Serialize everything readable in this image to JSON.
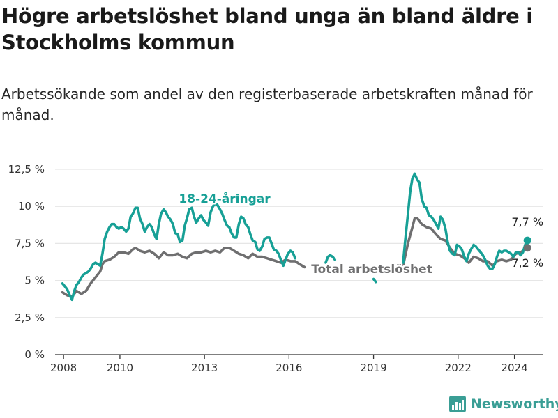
{
  "header": {
    "title": "Högre arbetslöshet bland unga än bland äldre i Stockholms kommun",
    "subtitle": "Arbetssökande som andel av den registerbaserade arbetskraften månad för månad."
  },
  "branding": {
    "logo_text": "Newsworthy",
    "logo_icon": "bar-chart-icon"
  },
  "colors": {
    "young": "#17a096",
    "total": "#6f6f70",
    "grid": "#e6e6e6",
    "axis": "#333333",
    "brand": "#3a9e95"
  },
  "chart_data": {
    "type": "line",
    "title": "Högre arbetslöshet bland unga än bland äldre i Stockholms kommun",
    "xlabel": "",
    "ylabel": "",
    "xlim": [
      2007.7,
      2025.0
    ],
    "ylim": [
      0,
      12.5
    ],
    "x_ticks": [
      {
        "value": 2008,
        "label": "2008"
      },
      {
        "value": 2010,
        "label": "2010"
      },
      {
        "value": 2013,
        "label": "2013"
      },
      {
        "value": 2016,
        "label": "2016"
      },
      {
        "value": 2019,
        "label": "2019"
      },
      {
        "value": 2022,
        "label": "2022"
      },
      {
        "value": 2024,
        "label": "2024"
      }
    ],
    "y_ticks": [
      {
        "value": 0,
        "label": "0 %"
      },
      {
        "value": 2.5,
        "label": "2,5 %"
      },
      {
        "value": 5,
        "label": "5 %"
      },
      {
        "value": 7.5,
        "label": "7,5 %"
      },
      {
        "value": 10,
        "label": "10 %"
      },
      {
        "value": 12.5,
        "label": "12,5 %"
      }
    ],
    "series": [
      {
        "name": "18-24-åringar",
        "label": "18-24-åringar",
        "color_key": "young",
        "end_label": "7,7 %",
        "segments": [
          [
            [
              2007.96,
              4.8
            ],
            [
              2008.05,
              4.6
            ],
            [
              2008.13,
              4.4
            ],
            [
              2008.22,
              4.0
            ],
            [
              2008.3,
              3.7
            ],
            [
              2008.38,
              4.3
            ],
            [
              2008.46,
              4.7
            ],
            [
              2008.55,
              4.9
            ],
            [
              2008.63,
              5.2
            ],
            [
              2008.71,
              5.4
            ],
            [
              2008.8,
              5.5
            ],
            [
              2008.88,
              5.6
            ],
            [
              2008.96,
              5.8
            ],
            [
              2009.05,
              6.1
            ],
            [
              2009.13,
              6.2
            ],
            [
              2009.22,
              6.1
            ],
            [
              2009.3,
              6.0
            ],
            [
              2009.38,
              6.8
            ],
            [
              2009.46,
              7.8
            ],
            [
              2009.55,
              8.3
            ],
            [
              2009.63,
              8.6
            ],
            [
              2009.71,
              8.8
            ],
            [
              2009.8,
              8.8
            ],
            [
              2009.88,
              8.6
            ],
            [
              2009.96,
              8.5
            ],
            [
              2010.05,
              8.6
            ],
            [
              2010.13,
              8.5
            ],
            [
              2010.22,
              8.3
            ],
            [
              2010.3,
              8.5
            ],
            [
              2010.38,
              9.3
            ],
            [
              2010.46,
              9.5
            ],
            [
              2010.55,
              9.9
            ],
            [
              2010.63,
              9.9
            ],
            [
              2010.71,
              9.2
            ],
            [
              2010.8,
              8.8
            ],
            [
              2010.88,
              8.3
            ],
            [
              2010.96,
              8.6
            ],
            [
              2011.05,
              8.8
            ],
            [
              2011.13,
              8.6
            ],
            [
              2011.22,
              8.1
            ],
            [
              2011.3,
              7.8
            ],
            [
              2011.38,
              8.8
            ],
            [
              2011.46,
              9.5
            ],
            [
              2011.55,
              9.8
            ],
            [
              2011.63,
              9.6
            ],
            [
              2011.71,
              9.3
            ],
            [
              2011.8,
              9.1
            ],
            [
              2011.88,
              8.8
            ],
            [
              2011.96,
              8.2
            ],
            [
              2012.05,
              8.1
            ],
            [
              2012.13,
              7.6
            ],
            [
              2012.22,
              7.7
            ],
            [
              2012.3,
              8.7
            ],
            [
              2012.38,
              9.2
            ],
            [
              2012.46,
              9.8
            ],
            [
              2012.55,
              9.9
            ],
            [
              2012.63,
              9.3
            ],
            [
              2012.71,
              8.9
            ],
            [
              2012.8,
              9.2
            ],
            [
              2012.88,
              9.4
            ],
            [
              2012.96,
              9.1
            ],
            [
              2013.05,
              8.9
            ],
            [
              2013.13,
              8.7
            ],
            [
              2013.22,
              9.6
            ],
            [
              2013.3,
              10.0
            ],
            [
              2013.38,
              10.2
            ],
            [
              2013.46,
              10.1
            ],
            [
              2013.55,
              9.8
            ],
            [
              2013.63,
              9.5
            ],
            [
              2013.71,
              9.1
            ],
            [
              2013.8,
              8.7
            ],
            [
              2013.88,
              8.6
            ],
            [
              2013.96,
              8.2
            ],
            [
              2014.05,
              7.9
            ],
            [
              2014.13,
              7.9
            ],
            [
              2014.22,
              8.8
            ],
            [
              2014.3,
              9.3
            ],
            [
              2014.38,
              9.2
            ],
            [
              2014.46,
              8.8
            ],
            [
              2014.55,
              8.6
            ],
            [
              2014.63,
              8.1
            ],
            [
              2014.71,
              7.7
            ],
            [
              2014.8,
              7.6
            ],
            [
              2014.88,
              7.1
            ],
            [
              2014.96,
              7.0
            ],
            [
              2015.05,
              7.3
            ],
            [
              2015.13,
              7.8
            ],
            [
              2015.22,
              7.9
            ],
            [
              2015.3,
              7.9
            ],
            [
              2015.38,
              7.5
            ],
            [
              2015.46,
              7.1
            ],
            [
              2015.55,
              7.0
            ],
            [
              2015.63,
              6.8
            ],
            [
              2015.71,
              6.4
            ],
            [
              2015.8,
              6.0
            ],
            [
              2015.88,
              6.4
            ],
            [
              2015.96,
              6.8
            ],
            [
              2016.05,
              7.0
            ],
            [
              2016.13,
              6.9
            ],
            [
              2016.22,
              6.5
            ]
          ],
          [
            [
              2017.3,
              6.2
            ],
            [
              2017.38,
              6.6
            ],
            [
              2017.46,
              6.7
            ],
            [
              2017.55,
              6.6
            ],
            [
              2017.63,
              6.4
            ]
          ],
          [
            [
              2019.0,
              5.1
            ],
            [
              2019.08,
              4.9
            ]
          ],
          [
            [
              2020.05,
              6.2
            ],
            [
              2020.13,
              7.8
            ],
            [
              2020.22,
              9.5
            ],
            [
              2020.3,
              11.0
            ],
            [
              2020.38,
              11.9
            ],
            [
              2020.46,
              12.2
            ],
            [
              2020.55,
              11.8
            ],
            [
              2020.63,
              11.6
            ],
            [
              2020.71,
              10.5
            ],
            [
              2020.8,
              10.0
            ],
            [
              2020.88,
              9.9
            ],
            [
              2020.96,
              9.4
            ],
            [
              2021.05,
              9.3
            ],
            [
              2021.13,
              9.1
            ],
            [
              2021.22,
              8.8
            ],
            [
              2021.3,
              8.5
            ],
            [
              2021.38,
              9.3
            ],
            [
              2021.46,
              9.1
            ],
            [
              2021.55,
              8.5
            ],
            [
              2021.63,
              7.6
            ],
            [
              2021.71,
              7.0
            ],
            [
              2021.8,
              6.8
            ],
            [
              2021.88,
              6.7
            ],
            [
              2021.96,
              7.4
            ],
            [
              2022.05,
              7.3
            ],
            [
              2022.13,
              7.1
            ],
            [
              2022.22,
              6.6
            ],
            [
              2022.3,
              6.3
            ],
            [
              2022.38,
              6.8
            ],
            [
              2022.46,
              7.1
            ],
            [
              2022.55,
              7.4
            ],
            [
              2022.63,
              7.3
            ],
            [
              2022.71,
              7.1
            ],
            [
              2022.8,
              6.9
            ],
            [
              2022.88,
              6.7
            ],
            [
              2022.96,
              6.4
            ],
            [
              2023.05,
              6.0
            ],
            [
              2023.13,
              5.8
            ],
            [
              2023.22,
              5.8
            ],
            [
              2023.3,
              6.1
            ],
            [
              2023.38,
              6.6
            ],
            [
              2023.46,
              7.0
            ],
            [
              2023.55,
              6.9
            ],
            [
              2023.63,
              7.0
            ],
            [
              2023.71,
              7.0
            ],
            [
              2023.8,
              6.9
            ],
            [
              2023.88,
              6.8
            ],
            [
              2023.96,
              6.6
            ],
            [
              2024.05,
              6.9
            ],
            [
              2024.13,
              6.9
            ],
            [
              2024.22,
              6.7
            ],
            [
              2024.3,
              6.9
            ],
            [
              2024.38,
              7.4
            ],
            [
              2024.46,
              7.7
            ]
          ]
        ]
      },
      {
        "name": "Total arbetslöshet",
        "label": "Total arbetslöshet",
        "color_key": "total",
        "end_label": "7,2 %",
        "segments": [
          [
            [
              2007.96,
              4.2
            ],
            [
              2008.13,
              4.0
            ],
            [
              2008.3,
              3.9
            ],
            [
              2008.46,
              4.3
            ],
            [
              2008.63,
              4.1
            ],
            [
              2008.8,
              4.3
            ],
            [
              2008.96,
              4.8
            ],
            [
              2009.13,
              5.2
            ],
            [
              2009.3,
              5.6
            ],
            [
              2009.38,
              6.1
            ],
            [
              2009.46,
              6.3
            ],
            [
              2009.63,
              6.4
            ],
            [
              2009.8,
              6.6
            ],
            [
              2009.96,
              6.9
            ],
            [
              2010.13,
              6.9
            ],
            [
              2010.3,
              6.8
            ],
            [
              2010.46,
              7.1
            ],
            [
              2010.55,
              7.2
            ],
            [
              2010.71,
              7.0
            ],
            [
              2010.88,
              6.9
            ],
            [
              2011.05,
              7.0
            ],
            [
              2011.22,
              6.8
            ],
            [
              2011.38,
              6.5
            ],
            [
              2011.55,
              6.9
            ],
            [
              2011.71,
              6.7
            ],
            [
              2011.88,
              6.7
            ],
            [
              2012.05,
              6.8
            ],
            [
              2012.22,
              6.6
            ],
            [
              2012.38,
              6.5
            ],
            [
              2012.55,
              6.8
            ],
            [
              2012.71,
              6.9
            ],
            [
              2012.88,
              6.9
            ],
            [
              2013.05,
              7.0
            ],
            [
              2013.22,
              6.9
            ],
            [
              2013.38,
              7.0
            ],
            [
              2013.55,
              6.9
            ],
            [
              2013.71,
              7.2
            ],
            [
              2013.88,
              7.2
            ],
            [
              2014.05,
              7.0
            ],
            [
              2014.22,
              6.8
            ],
            [
              2014.38,
              6.7
            ],
            [
              2014.55,
              6.5
            ],
            [
              2014.71,
              6.8
            ],
            [
              2014.88,
              6.6
            ],
            [
              2015.05,
              6.6
            ],
            [
              2015.22,
              6.5
            ],
            [
              2015.38,
              6.4
            ],
            [
              2015.55,
              6.3
            ],
            [
              2015.71,
              6.2
            ],
            [
              2015.88,
              6.4
            ],
            [
              2016.05,
              6.3
            ],
            [
              2016.22,
              6.3
            ],
            [
              2016.38,
              6.1
            ],
            [
              2016.55,
              5.9
            ]
          ],
          [
            [
              2020.05,
              6.0
            ],
            [
              2020.22,
              7.5
            ],
            [
              2020.38,
              8.6
            ],
            [
              2020.46,
              9.2
            ],
            [
              2020.55,
              9.2
            ],
            [
              2020.71,
              8.8
            ],
            [
              2020.88,
              8.6
            ],
            [
              2021.05,
              8.5
            ],
            [
              2021.22,
              8.1
            ],
            [
              2021.38,
              7.8
            ],
            [
              2021.55,
              7.7
            ],
            [
              2021.71,
              7.2
            ],
            [
              2021.88,
              6.8
            ],
            [
              2022.05,
              6.7
            ],
            [
              2022.22,
              6.5
            ],
            [
              2022.38,
              6.2
            ],
            [
              2022.55,
              6.6
            ],
            [
              2022.71,
              6.5
            ],
            [
              2022.88,
              6.3
            ],
            [
              2023.05,
              6.3
            ],
            [
              2023.22,
              6.0
            ],
            [
              2023.38,
              6.3
            ],
            [
              2023.55,
              6.4
            ],
            [
              2023.71,
              6.3
            ],
            [
              2023.88,
              6.4
            ],
            [
              2024.05,
              6.8
            ],
            [
              2024.22,
              6.9
            ],
            [
              2024.38,
              7.1
            ],
            [
              2024.46,
              7.2
            ]
          ]
        ]
      }
    ]
  }
}
